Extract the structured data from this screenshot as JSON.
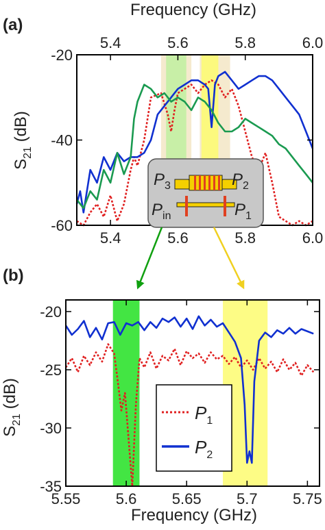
{
  "chart_data": [
    {
      "panel": "(a)",
      "type": "line",
      "xlabel": "Frequency (GHz)",
      "ylabel_main": "S",
      "ylabel_sub": "21",
      "ylabel_unit": " (dB)",
      "xlim": [
        5.3,
        6.0
      ],
      "ylim": [
        -60,
        -20
      ],
      "xticks": [
        5.4,
        5.6,
        5.8,
        6.0
      ],
      "xtick_labels": [
        "5.4",
        "5.6",
        "5.8",
        "6.0"
      ],
      "yticks": [
        -60,
        -40,
        -20
      ],
      "ytick_labels": [
        "-60",
        "-40",
        "-20"
      ],
      "x_axis_top": true,
      "highlight_bands": [
        {
          "x": [
            5.55,
            5.64
          ],
          "color": "#f3e6c6"
        },
        {
          "x": [
            5.565,
            5.625
          ],
          "color": "#bff0a0"
        },
        {
          "x": [
            5.665,
            5.755
          ],
          "color": "#f3e6c6"
        },
        {
          "x": [
            5.67,
            5.72
          ],
          "color": "#fdfb70"
        }
      ],
      "series": [
        {
          "name": "P1",
          "color": "#e02020",
          "dash": true,
          "x": [
            5.3,
            5.32,
            5.34,
            5.36,
            5.38,
            5.4,
            5.42,
            5.44,
            5.46,
            5.47,
            5.48,
            5.5,
            5.52,
            5.55,
            5.57,
            5.58,
            5.59,
            5.6,
            5.62,
            5.64,
            5.66,
            5.68,
            5.7,
            5.72,
            5.74,
            5.76,
            5.78,
            5.8,
            5.82,
            5.84,
            5.86,
            5.88,
            5.9,
            5.92,
            5.94,
            5.96,
            5.98,
            6.0
          ],
          "y": [
            -59,
            -60,
            -57,
            -55,
            -58,
            -53,
            -59,
            -55,
            -47,
            -44,
            -46,
            -40,
            -30,
            -29,
            -34,
            -38,
            -33,
            -29,
            -28,
            -27,
            -29,
            -27,
            -26,
            -27,
            -30,
            -28,
            -32,
            -38,
            -44,
            -47,
            -43,
            -50,
            -58,
            -59,
            -60,
            -59,
            -60,
            -59
          ]
        },
        {
          "name": "P2",
          "color": "#1030d0",
          "dash": false,
          "x": [
            5.3,
            5.31,
            5.32,
            5.34,
            5.36,
            5.38,
            5.4,
            5.42,
            5.44,
            5.46,
            5.48,
            5.5,
            5.52,
            5.54,
            5.56,
            5.58,
            5.6,
            5.62,
            5.64,
            5.66,
            5.68,
            5.69,
            5.7,
            5.71,
            5.72,
            5.74,
            5.76,
            5.78,
            5.8,
            5.82,
            5.84,
            5.86,
            5.88,
            5.9,
            5.92,
            5.94,
            5.96,
            5.98,
            6.0
          ],
          "y": [
            -55,
            -52,
            -57,
            -47,
            -50,
            -44,
            -47,
            -43,
            -45,
            -44,
            -44,
            -43,
            -40,
            -34,
            -32,
            -30,
            -28,
            -27,
            -26,
            -26,
            -27,
            -28,
            -37,
            -27,
            -25,
            -24,
            -26,
            -28,
            -27,
            -26,
            -25,
            -25,
            -26,
            -28,
            -30,
            -32,
            -34,
            -38,
            -42
          ]
        },
        {
          "name": "P3",
          "color": "#1a9a50",
          "dash": false,
          "x": [
            5.3,
            5.32,
            5.34,
            5.36,
            5.38,
            5.4,
            5.42,
            5.44,
            5.46,
            5.47,
            5.48,
            5.5,
            5.52,
            5.54,
            5.56,
            5.58,
            5.6,
            5.62,
            5.64,
            5.66,
            5.68,
            5.7,
            5.72,
            5.74,
            5.76,
            5.78,
            5.8,
            5.82,
            5.84,
            5.86,
            5.88,
            5.9,
            5.92,
            5.94,
            5.96,
            5.98,
            6.0
          ],
          "y": [
            -54,
            -56,
            -52,
            -54,
            -47,
            -50,
            -43,
            -48,
            -44,
            -35,
            -31,
            -27,
            -28,
            -30,
            -29,
            -31,
            -30,
            -31,
            -33,
            -30,
            -31,
            -33,
            -36,
            -38,
            -38,
            -37,
            -35,
            -36,
            -37,
            -38,
            -39,
            -41,
            -42,
            -44,
            -46,
            -48,
            -50
          ]
        }
      ],
      "inset": {
        "labels": [
          {
            "main": "P",
            "sub": "3",
            "color": "#1a9a50"
          },
          {
            "main": "P",
            "sub": "2",
            "color": "#1030d0"
          },
          {
            "main": "P",
            "sub": "in",
            "color": "#111111"
          },
          {
            "main": "P",
            "sub": "1",
            "color": "#e02020"
          }
        ]
      },
      "arrows": [
        {
          "color": "#10a010",
          "from_x": 5.6,
          "to_x": 5.6
        },
        {
          "color": "#f0d020",
          "from_x": 5.7,
          "to_x": 5.7
        }
      ]
    },
    {
      "panel": "(b)",
      "type": "line",
      "xlabel": "Frequency (GHz)",
      "ylabel_main": "S",
      "ylabel_sub": "21",
      "ylabel_unit": " (dB)",
      "xlim": [
        5.55,
        5.76
      ],
      "ylim": [
        -35,
        -19
      ],
      "xticks": [
        5.55,
        5.6,
        5.65,
        5.7,
        5.75
      ],
      "xtick_labels": [
        "5.55",
        "5.6",
        "5.65",
        "5.7",
        "5.75"
      ],
      "yticks": [
        -35,
        -30,
        -25,
        -20
      ],
      "ytick_labels": [
        "-35",
        "-30",
        "-25",
        "-20"
      ],
      "highlight_bands": [
        {
          "x": [
            5.589,
            5.611
          ],
          "color": "#22e022"
        },
        {
          "x": [
            5.68,
            5.717
          ],
          "color": "#fdfb70"
        }
      ],
      "series": [
        {
          "name": "P1",
          "color": "#e02020",
          "dash": true,
          "x": [
            5.55,
            5.555,
            5.56,
            5.565,
            5.57,
            5.575,
            5.58,
            5.585,
            5.59,
            5.593,
            5.596,
            5.599,
            5.602,
            5.605,
            5.608,
            5.611,
            5.615,
            5.62,
            5.625,
            5.63,
            5.635,
            5.64,
            5.645,
            5.65,
            5.655,
            5.66,
            5.665,
            5.67,
            5.675,
            5.68,
            5.685,
            5.69,
            5.695,
            5.7,
            5.705,
            5.71,
            5.715,
            5.72,
            5.725,
            5.73,
            5.735,
            5.74,
            5.745,
            5.75,
            5.755
          ],
          "y": [
            -24.8,
            -24.0,
            -25.2,
            -23.8,
            -24.6,
            -23.5,
            -24.3,
            -22.8,
            -23.6,
            -26.0,
            -28.5,
            -27.0,
            -31.0,
            -35.0,
            -28.0,
            -24.0,
            -24.8,
            -23.5,
            -24.9,
            -23.8,
            -24.2,
            -23.2,
            -24.6,
            -23.4,
            -24.0,
            -23.6,
            -24.4,
            -23.5,
            -24.1,
            -23.8,
            -24.5,
            -23.9,
            -24.8,
            -24.2,
            -25.0,
            -24.0,
            -24.9,
            -24.3,
            -25.2,
            -24.1,
            -25.0,
            -24.4,
            -25.5,
            -24.6,
            -25.2
          ]
        },
        {
          "name": "P2",
          "color": "#1030d0",
          "dash": false,
          "x": [
            5.55,
            5.555,
            5.56,
            5.565,
            5.57,
            5.575,
            5.58,
            5.585,
            5.59,
            5.595,
            5.6,
            5.605,
            5.61,
            5.615,
            5.62,
            5.625,
            5.63,
            5.635,
            5.64,
            5.645,
            5.65,
            5.655,
            5.66,
            5.665,
            5.67,
            5.675,
            5.68,
            5.685,
            5.69,
            5.695,
            5.698,
            5.7,
            5.702,
            5.704,
            5.706,
            5.71,
            5.715,
            5.72,
            5.725,
            5.73,
            5.735,
            5.74,
            5.745,
            5.75,
            5.755
          ],
          "y": [
            -21.2,
            -22.0,
            -21.5,
            -20.8,
            -22.2,
            -21.4,
            -22.4,
            -21.0,
            -20.9,
            -22.0,
            -21.0,
            -21.2,
            -20.9,
            -21.6,
            -20.9,
            -21.4,
            -20.6,
            -20.9,
            -20.5,
            -21.3,
            -20.6,
            -21.5,
            -20.4,
            -21.2,
            -20.7,
            -21.3,
            -21.0,
            -21.8,
            -22.6,
            -24.0,
            -28.0,
            -33.0,
            -32.0,
            -33.0,
            -26.0,
            -22.5,
            -21.8,
            -22.2,
            -21.6,
            -21.9,
            -21.4,
            -21.9,
            -21.5,
            -21.7,
            -21.9
          ]
        }
      ],
      "legend": {
        "placement": "bottom-middle",
        "entries": [
          {
            "main": "P",
            "sub": "1",
            "color": "#e02020",
            "dash": true
          },
          {
            "main": "P",
            "sub": "2",
            "color": "#1030d0",
            "dash": false
          }
        ]
      }
    }
  ]
}
